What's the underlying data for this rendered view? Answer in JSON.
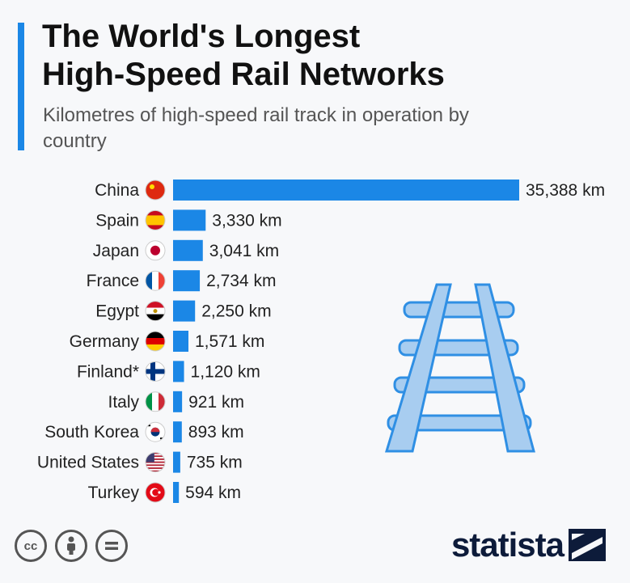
{
  "title_line1": "The World's Longest",
  "title_line2": "High-Speed Rail Networks",
  "subtitle": "Kilometres of high-speed rail track in operation by country",
  "brand": "statista",
  "colors": {
    "accent": "#1b87e6",
    "bar": "#1b87e6",
    "rail": "#a8cdf0",
    "rail_stroke": "#2f8fe4"
  },
  "license_icons": [
    "cc-icon",
    "attribution-icon",
    "no-derivatives-icon"
  ],
  "chart_data": {
    "type": "bar",
    "orientation": "horizontal",
    "title": "The World's Longest High-Speed Rail Networks",
    "subtitle": "Kilometres of high-speed rail track in operation by country",
    "categories": [
      "China",
      "Spain",
      "Japan",
      "France",
      "Egypt",
      "Germany",
      "Finland*",
      "Italy",
      "South Korea",
      "United States",
      "Turkey"
    ],
    "values": [
      35388,
      3330,
      3041,
      2734,
      2250,
      1571,
      1120,
      921,
      893,
      735,
      594
    ],
    "value_labels": [
      "35,388 km",
      "3,330 km",
      "3,041 km",
      "2,734 km",
      "2,250 km",
      "1,571 km",
      "1,120 km",
      "921 km",
      "893 km",
      "735 km",
      "594 km"
    ],
    "unit": "km",
    "flags": [
      "china-flag-icon",
      "spain-flag-icon",
      "japan-flag-icon",
      "france-flag-icon",
      "egypt-flag-icon",
      "germany-flag-icon",
      "finland-flag-icon",
      "italy-flag-icon",
      "south-korea-flag-icon",
      "united-states-flag-icon",
      "turkey-flag-icon"
    ],
    "grid": false,
    "legend": "none"
  }
}
